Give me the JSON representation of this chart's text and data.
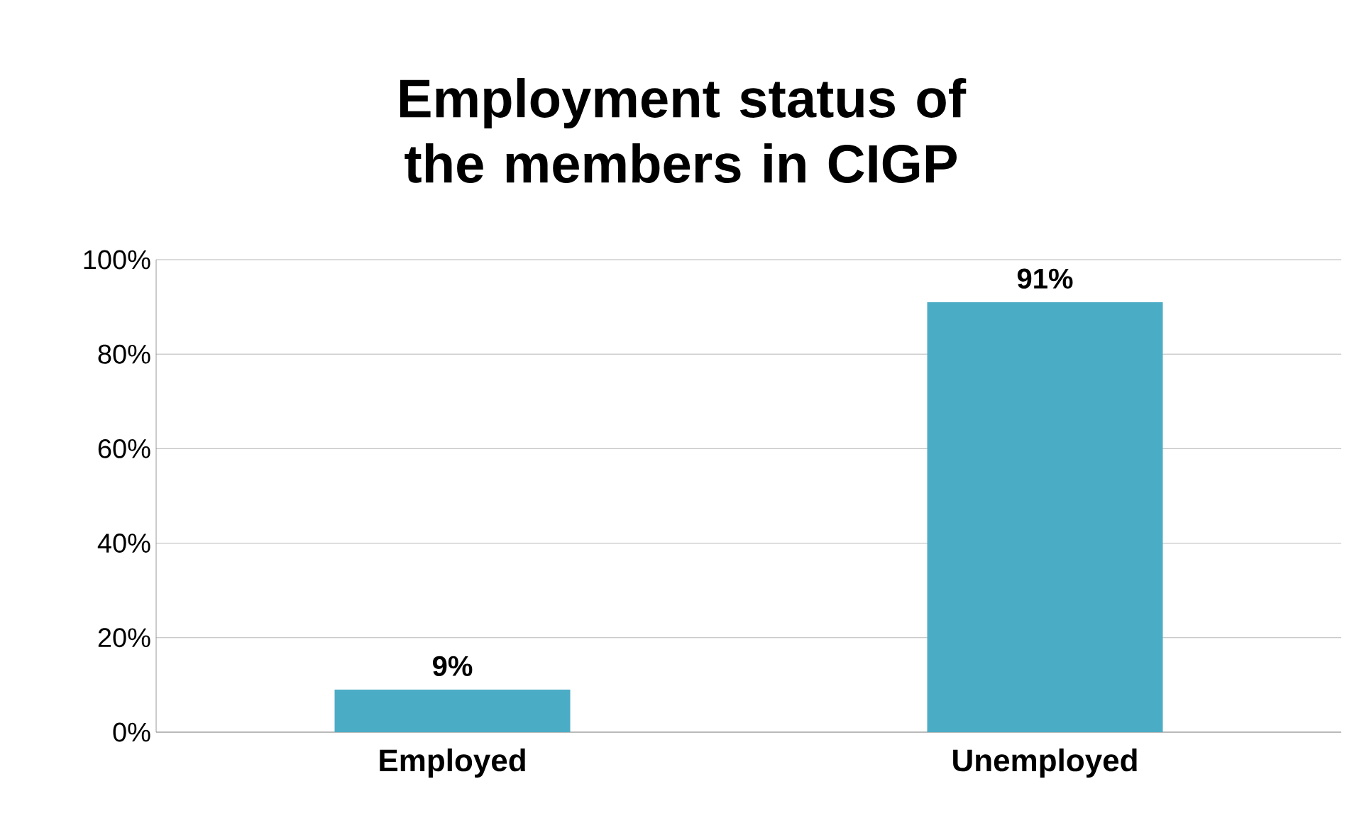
{
  "chart_data": {
    "type": "bar",
    "title": "Employment status of the members in CIGP",
    "categories": [
      "Employed",
      "Unemployed"
    ],
    "values": [
      9,
      91
    ],
    "color": "#4bacc6",
    "value_labels": [
      "9%",
      "91%"
    ],
    "ylim": [
      0,
      100
    ],
    "yticks": [
      {
        "value": 0,
        "label": "0%"
      },
      {
        "value": 20,
        "label": "20%"
      },
      {
        "value": 40,
        "label": "40%"
      },
      {
        "value": 60,
        "label": "60%"
      },
      {
        "value": 80,
        "label": "80%"
      },
      {
        "value": 100,
        "label": "100%"
      }
    ],
    "grid": "y"
  }
}
